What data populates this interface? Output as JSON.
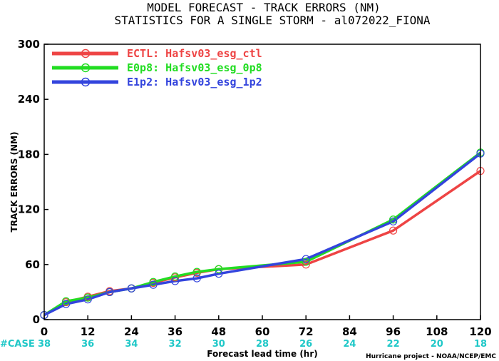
{
  "chart_data": {
    "type": "line",
    "title": "MODEL FORECAST - TRACK ERRORS (NM)",
    "subtitle": "STATISTICS FOR A SINGLE STORM - al072022_FIONA",
    "xlabel": "Forecast lead time (hr)",
    "ylabel": "TRACK ERRORS (NM)",
    "xlim": [
      0,
      120
    ],
    "ylim": [
      0,
      300
    ],
    "xticks": [
      "0",
      "12",
      "24",
      "36",
      "48",
      "60",
      "72",
      "84",
      "96",
      "108",
      "120"
    ],
    "yticks": [
      "0",
      "60",
      "120",
      "180",
      "240",
      "300"
    ],
    "case_label": "#CASE",
    "cases": [
      "38",
      "36",
      "34",
      "32",
      "30",
      "28",
      "26",
      "24",
      "22",
      "20",
      "18"
    ],
    "legend_position": "top-left",
    "grid": false,
    "x": [
      0,
      6,
      12,
      18,
      24,
      30,
      36,
      42,
      48,
      72,
      96,
      120
    ],
    "series": [
      {
        "name": "ECTL: Hafsv03_esg_ctl",
        "color": "#ee4444",
        "values": [
          5,
          19,
          25,
          31,
          34,
          40,
          46,
          51,
          55,
          60,
          97,
          162
        ]
      },
      {
        "name": "E0p8: Hafsv03_esg_0p8",
        "color": "#22dd22",
        "values": [
          5,
          20,
          24,
          30,
          34,
          41,
          47,
          52,
          55,
          63,
          109,
          182
        ]
      },
      {
        "name": "E1p2: Hafsv03_esg_1p2",
        "color": "#3344dd",
        "values": [
          5,
          17,
          22,
          30,
          34,
          38,
          42,
          45,
          50,
          66,
          107,
          181
        ]
      }
    ],
    "credit": "Hurricane project - NOAA/NCEP/EMC"
  }
}
